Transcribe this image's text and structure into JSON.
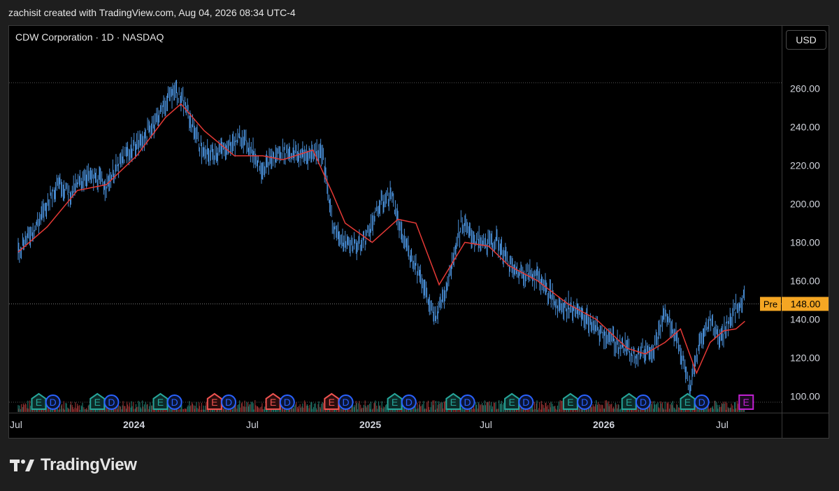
{
  "header": {
    "attribution": "zachisit created with TradingView.com, Aug 04, 2026 08:34 UTC-4"
  },
  "chart_title": "CDW Corporation · 1D · NASDAQ",
  "currency_button": "USD",
  "brand": {
    "name": "TradingView"
  },
  "colors": {
    "background": "#000000",
    "candles": "#4a90d9",
    "moving_average": "#e53935",
    "price_tag": "#f5a623",
    "earnings_teal": "#26a69a",
    "earnings_red": "#ef5350",
    "dividend_blue": "#2962ff",
    "upcoming_earnings": "#c020d0"
  },
  "chart_data": {
    "type": "line",
    "title": "CDW Corporation · 1D · NASDAQ",
    "x_tick_labels": [
      "Jul",
      "2024",
      "Jul",
      "2025",
      "Jul",
      "2026",
      "Jul"
    ],
    "y_tick_labels": [
      "100.00",
      "120.00",
      "140.00",
      "160.00",
      "180.00",
      "200.00",
      "220.00",
      "240.00",
      "260.00"
    ],
    "ylim": [
      95,
      270
    ],
    "grid": false,
    "price_tag": {
      "label": "Pre",
      "value": "148.00",
      "y": 148
    },
    "reference_line": 263,
    "series": [
      {
        "name": "Price",
        "x": [
          "2023-07-01",
          "2023-08-01",
          "2023-09-01",
          "2023-09-20",
          "2023-10-15",
          "2023-11-15",
          "2023-12-15",
          "2024-01-15",
          "2024-02-15",
          "2024-03-01",
          "2024-03-20",
          "2024-04-15",
          "2024-05-15",
          "2024-06-15",
          "2024-07-15",
          "2024-08-15",
          "2024-09-15",
          "2024-10-15",
          "2024-11-01",
          "2024-11-15",
          "2024-12-15",
          "2025-01-15",
          "2025-02-01",
          "2025-02-15",
          "2025-03-15",
          "2025-04-08",
          "2025-04-25",
          "2025-05-20",
          "2025-06-15",
          "2025-07-15",
          "2025-08-10",
          "2025-09-15",
          "2025-10-15",
          "2025-11-15",
          "2025-12-15",
          "2026-01-15",
          "2026-02-15",
          "2026-03-15",
          "2026-04-01",
          "2026-04-20",
          "2026-05-10",
          "2026-05-25",
          "2026-06-10",
          "2026-06-25",
          "2026-07-15",
          "2026-08-03"
        ],
        "values": [
          176,
          190,
          212,
          205,
          215,
          210,
          225,
          235,
          252,
          260,
          248,
          225,
          228,
          235,
          218,
          228,
          225,
          228,
          190,
          180,
          178,
          200,
          205,
          184,
          165,
          140,
          155,
          190,
          180,
          180,
          165,
          163,
          148,
          145,
          135,
          128,
          122,
          125,
          143,
          130,
          103,
          127,
          140,
          130,
          142,
          151
        ]
      },
      {
        "name": "Moving Average",
        "x": [
          "2023-07-01",
          "2023-08-15",
          "2023-10-01",
          "2023-11-15",
          "2024-01-01",
          "2024-02-15",
          "2024-03-10",
          "2024-04-15",
          "2024-06-01",
          "2024-07-15",
          "2024-08-15",
          "2024-10-01",
          "2024-11-01",
          "2024-11-20",
          "2025-01-01",
          "2025-02-10",
          "2025-03-10",
          "2025-04-15",
          "2025-05-25",
          "2025-07-01",
          "2025-08-01",
          "2025-09-15",
          "2025-11-01",
          "2025-12-15",
          "2026-02-01",
          "2026-03-01",
          "2026-04-01",
          "2026-04-25",
          "2026-05-20",
          "2026-06-10",
          "2026-07-01",
          "2026-07-20",
          "2026-08-03"
        ],
        "values": [
          175,
          188,
          207,
          210,
          225,
          245,
          252,
          238,
          225,
          225,
          223,
          228,
          205,
          190,
          180,
          192,
          190,
          158,
          180,
          178,
          168,
          160,
          148,
          140,
          125,
          122,
          128,
          135,
          112,
          128,
          134,
          135,
          139
        ]
      }
    ],
    "events": [
      {
        "type": "E",
        "variant": "earnings",
        "x": "2023-08-02"
      },
      {
        "type": "D",
        "variant": "dividend",
        "x": "2023-08-24"
      },
      {
        "type": "E",
        "variant": "earnings",
        "x": "2023-11-01"
      },
      {
        "type": "D",
        "variant": "dividend",
        "x": "2023-11-23"
      },
      {
        "type": "E",
        "variant": "earnings",
        "x": "2024-02-07"
      },
      {
        "type": "D",
        "variant": "dividend",
        "x": "2024-02-29"
      },
      {
        "type": "E",
        "variant": "earnings-miss",
        "x": "2024-05-01"
      },
      {
        "type": "D",
        "variant": "dividend",
        "x": "2024-05-23"
      },
      {
        "type": "E",
        "variant": "earnings-miss",
        "x": "2024-07-31"
      },
      {
        "type": "D",
        "variant": "dividend",
        "x": "2024-08-22"
      },
      {
        "type": "E",
        "variant": "earnings-miss",
        "x": "2024-10-30"
      },
      {
        "type": "D",
        "variant": "dividend",
        "x": "2024-11-21"
      },
      {
        "type": "E",
        "variant": "earnings",
        "x": "2025-02-05"
      },
      {
        "type": "D",
        "variant": "dividend",
        "x": "2025-02-27"
      },
      {
        "type": "E",
        "variant": "earnings",
        "x": "2025-05-07"
      },
      {
        "type": "D",
        "variant": "dividend",
        "x": "2025-05-29"
      },
      {
        "type": "E",
        "variant": "earnings",
        "x": "2025-08-06"
      },
      {
        "type": "D",
        "variant": "dividend",
        "x": "2025-08-28"
      },
      {
        "type": "E",
        "variant": "earnings",
        "x": "2025-11-05"
      },
      {
        "type": "D",
        "variant": "dividend",
        "x": "2025-11-27"
      },
      {
        "type": "E",
        "variant": "earnings",
        "x": "2026-02-04"
      },
      {
        "type": "D",
        "variant": "dividend",
        "x": "2026-02-26"
      },
      {
        "type": "E",
        "variant": "earnings",
        "x": "2026-05-06"
      },
      {
        "type": "D",
        "variant": "dividend",
        "x": "2026-05-28"
      },
      {
        "type": "E",
        "variant": "upcoming",
        "x": "2026-08-05"
      }
    ]
  }
}
